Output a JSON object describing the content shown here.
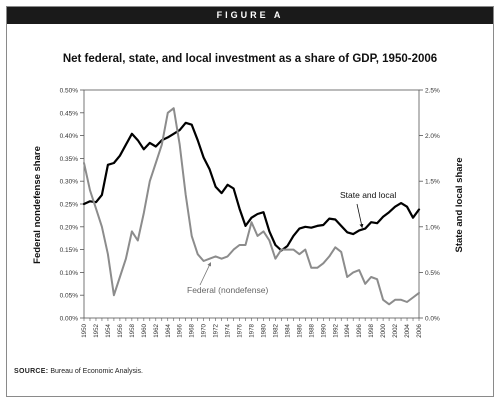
{
  "header": {
    "figure_label": "FIGURE A"
  },
  "footer": {
    "source_label": "SOURCE:",
    "source_text": "Bureau of Economic Analysis."
  },
  "colors": {
    "state_local": "#000000",
    "federal": "#8c8c8c",
    "axis": "#555555",
    "banner": "#1a1a1a"
  },
  "chart_data": {
    "type": "line",
    "title": "Net federal, state, and local investment as a share of GDP, 1950-2006",
    "xlabel": "",
    "ylabel_left": "Federal nondefense share",
    "ylabel_right": "State and local share",
    "x": [
      1950,
      1951,
      1952,
      1953,
      1954,
      1955,
      1956,
      1957,
      1958,
      1959,
      1960,
      1961,
      1962,
      1963,
      1964,
      1965,
      1966,
      1967,
      1968,
      1969,
      1970,
      1971,
      1972,
      1973,
      1974,
      1975,
      1976,
      1977,
      1978,
      1979,
      1980,
      1981,
      1982,
      1983,
      1984,
      1985,
      1986,
      1987,
      1988,
      1989,
      1990,
      1991,
      1992,
      1993,
      1994,
      1995,
      1996,
      1997,
      1998,
      1999,
      2000,
      2001,
      2002,
      2003,
      2004,
      2005,
      2006
    ],
    "x_tick_labels": [
      "1950",
      "1952",
      "1954",
      "1956",
      "1958",
      "1960",
      "1962",
      "1964",
      "1966",
      "1968",
      "1970",
      "1972",
      "1974",
      "1976",
      "1978",
      "1980",
      "1982",
      "1984",
      "1986",
      "1988",
      "1990",
      "1992",
      "1994",
      "1996",
      "1998",
      "2000",
      "2002",
      "2004",
      "2006"
    ],
    "y_left_range": [
      0,
      0.5
    ],
    "y_left_ticks": [
      "0.00%",
      "0.05%",
      "0.10%",
      "0.15%",
      "0.20%",
      "0.25%",
      "0.30%",
      "0.35%",
      "0.40%",
      "0.45%",
      "0.50%"
    ],
    "y_right_range": [
      0,
      2.5
    ],
    "y_right_ticks": [
      "0.0%",
      "0.5%",
      "1.0%",
      "1.5%",
      "2.0%",
      "2.5%"
    ],
    "grid": false,
    "series": [
      {
        "name": "State and local",
        "axis": "right",
        "values": [
          1.25,
          1.28,
          1.27,
          1.35,
          1.68,
          1.7,
          1.78,
          1.9,
          2.02,
          1.95,
          1.85,
          1.92,
          1.88,
          1.95,
          1.98,
          2.02,
          2.06,
          2.14,
          2.12,
          1.95,
          1.76,
          1.63,
          1.44,
          1.37,
          1.46,
          1.42,
          1.2,
          1.01,
          1.1,
          1.14,
          1.16,
          0.95,
          0.8,
          0.74,
          0.79,
          0.9,
          0.98,
          1.0,
          0.99,
          1.01,
          1.02,
          1.09,
          1.08,
          1.01,
          0.94,
          0.92,
          0.96,
          0.98,
          1.05,
          1.04,
          1.11,
          1.16,
          1.22,
          1.26,
          1.22,
          1.1,
          1.19
        ]
      },
      {
        "name": "Federal (nondefense)",
        "axis": "left",
        "values": [
          0.34,
          0.28,
          0.24,
          0.2,
          0.14,
          0.05,
          0.09,
          0.13,
          0.19,
          0.17,
          0.23,
          0.3,
          0.34,
          0.38,
          0.45,
          0.46,
          0.38,
          0.27,
          0.18,
          0.14,
          0.125,
          0.13,
          0.135,
          0.13,
          0.135,
          0.15,
          0.16,
          0.16,
          0.21,
          0.18,
          0.19,
          0.17,
          0.13,
          0.15,
          0.15,
          0.15,
          0.14,
          0.15,
          0.11,
          0.11,
          0.12,
          0.135,
          0.155,
          0.145,
          0.09,
          0.1,
          0.105,
          0.075,
          0.09,
          0.085,
          0.04,
          0.03,
          0.04,
          0.04,
          0.035,
          0.045,
          0.055
        ]
      }
    ],
    "annotations": [
      {
        "text": "State and local",
        "series": "State and local"
      },
      {
        "text": "Federal (nondefense)",
        "series": "Federal (nondefense)"
      }
    ]
  }
}
